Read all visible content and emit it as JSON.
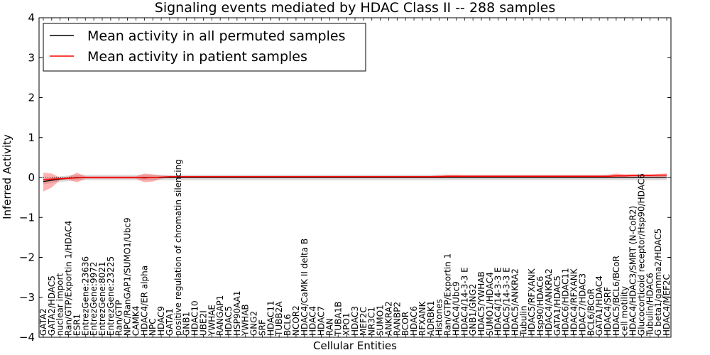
{
  "chart_data": {
    "type": "line",
    "title": "Signaling events mediated by HDAC Class II -- 288 samples",
    "xlabel": "Cellular Entities",
    "ylabel": "Inferred Activity",
    "ylim": [
      -4,
      4
    ],
    "yticks": [
      "4",
      "3",
      "2",
      "1",
      "0",
      "−1",
      "−2",
      "−3",
      "−4"
    ],
    "legend": {
      "location": "top-left",
      "entries": [
        {
          "label": "Mean activity in all permuted samples",
          "color": "#000000"
        },
        {
          "label": "Mean activity in patient samples",
          "color": "#ff0000"
        }
      ]
    },
    "categories": [
      "GATA2",
      "GATA2/HDAC5",
      "nuclear import",
      "Ran/GTP/Exportin 1/HDAC4",
      "ESR1",
      "EntrezGene:23636",
      "EntrezGene:9972",
      "EntrezGene:8021",
      "EntrezGene:23225",
      "Ran/GTP",
      "NPC/RanGAP1/SUMO1/Ubc9",
      "CAMK4",
      "HDAC4/ER alpha",
      "NPC",
      "HDAC9",
      "GATA1",
      "positive regulation of chromatin silencing",
      "GNB1",
      "HDAC10",
      "UBE2I",
      "YWHAE",
      "RANGAP1",
      "HDAC5",
      "HSP90AA1",
      "YWHAB",
      "GNG2",
      "SRF",
      "HDAC11",
      "TUBB2A",
      "BCL6",
      "NCOR2",
      "HDAC4/CaMK II delta B",
      "HDAC4",
      "HDAC7",
      "RAN",
      "TUBA1B",
      "XPO1",
      "HDAC3",
      "MEF2C",
      "NR3C1",
      "SUMO1",
      "ANKRA2",
      "RANBP2",
      "BCOR",
      "HDAC6",
      "RFXANK",
      "ADRBK1",
      "Histones",
      "Ran/GTP/Exportin 1",
      "HDAC4/Ubc9",
      "HDAC4/14-3-3 E",
      "GNB1/GNG2",
      "HDAC5/YWHAB",
      "SUMO1/HDAC4",
      "HDAC4/14-3-3 E",
      "HDAC5/14-3-3 E",
      "HDAC5/ANKRA2",
      "Tubulin",
      "HDAC5/RFXANK",
      "Hsp90/HDAC6",
      "HDAC4/ANKRA2",
      "GATA1/HDAC5",
      "HDAC6/HDAC11",
      "HDAC4/RFXANK",
      "HDAC7/HDAC3",
      "BCL6/BCoR",
      "GATA1/HDAC4",
      "HDAC4/SRF",
      "HDAC5/BCL6/BCoR",
      "cell motility",
      "HDAC4/HDAC3/SMRT (N-CoR2)",
      "Glucocorticoid receptor/Hsp90/HDAC6",
      "Tubulin/HDAC6",
      "G beta1/gamma2/HDAC5",
      "HDAC4/MEF2C"
    ],
    "series": [
      {
        "name": "Mean activity in all permuted samples",
        "color": "#000000",
        "values": [
          -0.1,
          -0.07,
          -0.04,
          -0.02,
          0.0,
          0.0,
          0.0,
          0.0,
          0.0,
          0.0,
          0.0,
          0.0,
          0.0,
          0.0,
          0.0,
          0.0,
          0.0,
          0.0,
          0.0,
          0.0,
          0.0,
          0.0,
          0.0,
          0.0,
          0.0,
          0.0,
          0.0,
          0.0,
          0.0,
          0.0,
          0.0,
          0.0,
          0.0,
          0.0,
          0.0,
          0.0,
          0.0,
          0.0,
          0.0,
          0.0,
          0.0,
          0.0,
          0.0,
          0.0,
          0.0,
          0.0,
          0.0,
          0.0,
          0.0,
          0.0,
          0.0,
          0.0,
          0.0,
          0.0,
          0.0,
          0.0,
          0.0,
          0.0,
          0.0,
          0.0,
          0.0,
          0.0,
          0.0,
          0.0,
          0.0,
          0.0,
          0.0,
          0.0,
          0.0,
          0.0,
          0.0,
          0.0,
          0.0,
          0.0,
          0.0
        ],
        "band": 0.07
      },
      {
        "name": "Mean activity in patient samples",
        "color": "#ff0000",
        "values": [
          -0.05,
          -0.04,
          -0.03,
          -0.02,
          -0.01,
          0.0,
          0.0,
          0.0,
          0.0,
          0.0,
          0.0,
          0.0,
          -0.01,
          0.0,
          0.01,
          0.02,
          0.02,
          0.02,
          0.02,
          0.02,
          0.02,
          0.02,
          0.02,
          0.02,
          0.02,
          0.02,
          0.02,
          0.02,
          0.02,
          0.02,
          0.02,
          0.02,
          0.02,
          0.02,
          0.02,
          0.02,
          0.02,
          0.02,
          0.02,
          0.02,
          0.02,
          0.02,
          0.02,
          0.02,
          0.02,
          0.02,
          0.02,
          0.02,
          0.03,
          0.03,
          0.03,
          0.03,
          0.03,
          0.03,
          0.03,
          0.03,
          0.03,
          0.03,
          0.03,
          0.03,
          0.03,
          0.03,
          0.03,
          0.03,
          0.03,
          0.03,
          0.03,
          0.03,
          0.04,
          0.04,
          0.05,
          0.05,
          0.05,
          0.06,
          0.06
        ],
        "band_upper": [
          0.12,
          0.1,
          0.0,
          0.02,
          0.12,
          0.03,
          0.03,
          0.03,
          0.03,
          0.03,
          0.03,
          0.03,
          0.1,
          0.08,
          0.05,
          0.04,
          0.04,
          0.04,
          0.04,
          0.04,
          0.04,
          0.04,
          0.04,
          0.04,
          0.04,
          0.04,
          0.04,
          0.04,
          0.04,
          0.04,
          0.04,
          0.04,
          0.04,
          0.04,
          0.04,
          0.04,
          0.04,
          0.04,
          0.04,
          0.04,
          0.04,
          0.04,
          0.04,
          0.04,
          0.04,
          0.04,
          0.04,
          0.06,
          0.07,
          0.07,
          0.06,
          0.06,
          0.06,
          0.06,
          0.06,
          0.06,
          0.06,
          0.06,
          0.06,
          0.06,
          0.06,
          0.06,
          0.06,
          0.06,
          0.06,
          0.06,
          0.06,
          0.07,
          0.1,
          0.08,
          0.08,
          0.08,
          0.08,
          0.09,
          0.1
        ],
        "band_lower": [
          -0.35,
          -0.25,
          -0.06,
          -0.06,
          -0.12,
          -0.03,
          -0.03,
          -0.03,
          -0.03,
          -0.03,
          -0.03,
          -0.03,
          -0.12,
          -0.1,
          -0.03,
          0.0,
          0.0,
          0.0,
          0.0,
          0.0,
          0.0,
          0.0,
          0.0,
          0.0,
          0.0,
          0.0,
          0.0,
          0.0,
          0.0,
          0.0,
          0.0,
          0.0,
          0.0,
          0.0,
          0.0,
          0.0,
          0.0,
          0.0,
          0.0,
          0.0,
          0.0,
          0.0,
          0.0,
          0.0,
          0.0,
          0.0,
          0.0,
          0.0,
          0.0,
          0.0,
          0.0,
          0.0,
          0.0,
          0.0,
          0.0,
          0.0,
          0.0,
          0.0,
          0.0,
          0.0,
          0.0,
          0.0,
          0.0,
          0.0,
          0.0,
          0.0,
          0.0,
          0.0,
          0.0,
          0.0,
          0.0,
          0.0,
          0.0,
          0.01,
          0.02
        ]
      }
    ]
  }
}
